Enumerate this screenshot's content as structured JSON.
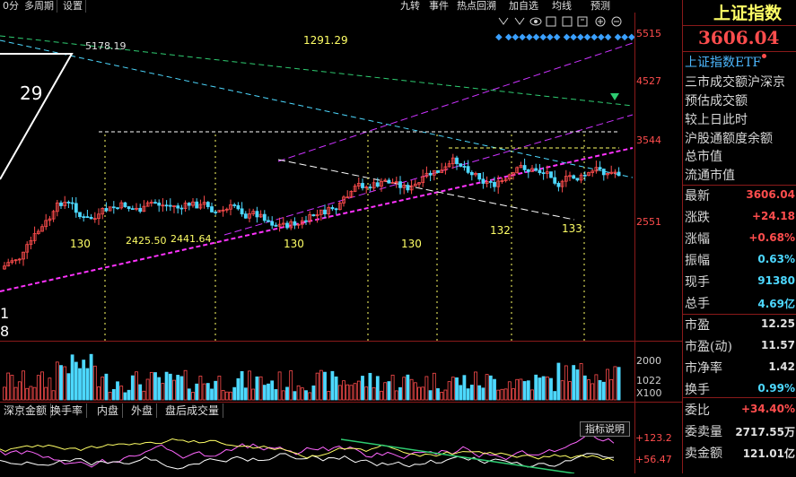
{
  "toolbar": {
    "left_tabs": [
      "0分",
      "多周期",
      "设置"
    ],
    "right_buttons": [
      "九转",
      "事件",
      "热点回溯",
      "加自选",
      "均线",
      "预测"
    ]
  },
  "price_axis": [
    "5515",
    "4527",
    "3544",
    "2551"
  ],
  "volume_axis": [
    "2000",
    "1022",
    "X100"
  ],
  "indicator_axis": [
    "+123.2",
    "+56.47"
  ],
  "chart_text": {
    "high": "5178.19",
    "low_a": "2425.50",
    "low_b": "2441.64",
    "mid": "1291.29",
    "count_29": "29",
    "c130a": "130",
    "c130b": "130",
    "c130c": "130",
    "c132": "132",
    "c133": "133",
    "left_1": "1",
    "left_8": "8"
  },
  "bottom_tabs": [
    "深京金额",
    "换手率",
    "内盘",
    "外盘",
    "盘后成交量"
  ],
  "indicator_button": "指标说明",
  "panel": {
    "title": "上证指数",
    "price": "3606.04",
    "etf": "上证指数ETF",
    "items": [
      "三市成交额沪深京",
      "预估成交额",
      "较上日此时",
      "沪股通额度余额",
      "总市值",
      "流通市值"
    ],
    "stats": [
      {
        "k": "最新",
        "v": "3606.04",
        "c": "#ff4d4d"
      },
      {
        "k": "涨跌",
        "v": "+24.18",
        "c": "#ff4d4d"
      },
      {
        "k": "涨幅",
        "v": "+0.68%",
        "c": "#ff4d4d"
      },
      {
        "k": "振幅",
        "v": "0.63%",
        "c": "#4dd8ff"
      },
      {
        "k": "现手",
        "v": "91380",
        "c": "#4dd8ff"
      },
      {
        "k": "总手",
        "v": "4.69亿",
        "c": "#4dd8ff"
      }
    ],
    "stats2": [
      {
        "k": "市盈",
        "v": "12.25",
        "c": "#e0e0e0"
      },
      {
        "k": "市盈(动)",
        "v": "11.57",
        "c": "#e0e0e0"
      },
      {
        "k": "市净率",
        "v": "1.42",
        "c": "#e0e0e0"
      },
      {
        "k": "换手",
        "v": "0.99%",
        "c": "#4dd8ff"
      }
    ],
    "stats3": [
      {
        "k": "委比",
        "v": "+34.40%",
        "c": "#ff4d4d"
      },
      {
        "k": "委卖量",
        "v": "2717.55万",
        "c": "#e0e0e0"
      },
      {
        "k": "卖金额",
        "v": "121.01亿",
        "c": "#e0e0e0"
      }
    ]
  },
  "colors": {
    "up": "#ff4d4d",
    "down": "#4dd8ff",
    "accent": "#ffff66"
  }
}
